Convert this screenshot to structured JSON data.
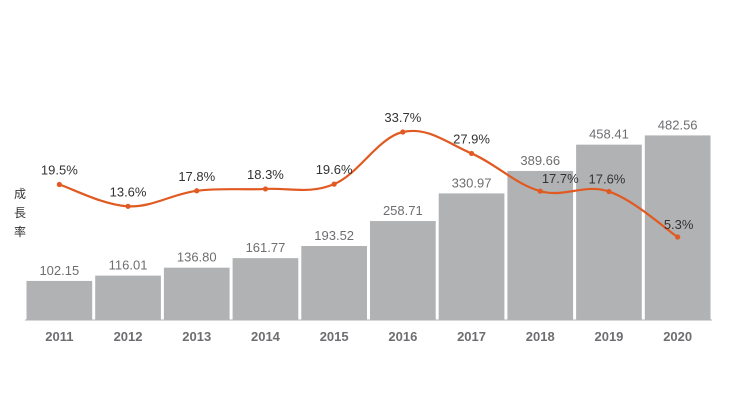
{
  "chart_data": {
    "type": "bar",
    "title": "",
    "xlabel": "",
    "ylabel": "成長率",
    "categories": [
      "2011",
      "2012",
      "2013",
      "2014",
      "2015",
      "2016",
      "2017",
      "2018",
      "2019",
      "2020"
    ],
    "series": [
      {
        "type": "bar",
        "values": [
          102.15,
          116.01,
          136.8,
          161.77,
          193.52,
          258.71,
          330.97,
          389.66,
          458.41,
          482.56
        ],
        "labels": [
          "102.15",
          "116.01",
          "136.80",
          "161.77",
          "193.52",
          "258.71",
          "330.97",
          "389.66",
          "458.41",
          "482.56"
        ],
        "color": "#b1b2b4"
      },
      {
        "type": "line",
        "values": [
          19.5,
          13.6,
          17.8,
          18.3,
          19.6,
          33.7,
          27.9,
          17.7,
          17.6,
          5.3
        ],
        "labels": [
          "19.5%",
          "13.6%",
          "17.8%",
          "18.3%",
          "19.6%",
          "33.7%",
          "27.9%",
          "17.7%",
          "17.6%",
          "5.3%"
        ],
        "color": "#e05a22"
      }
    ],
    "legend": "none",
    "grid": false
  }
}
